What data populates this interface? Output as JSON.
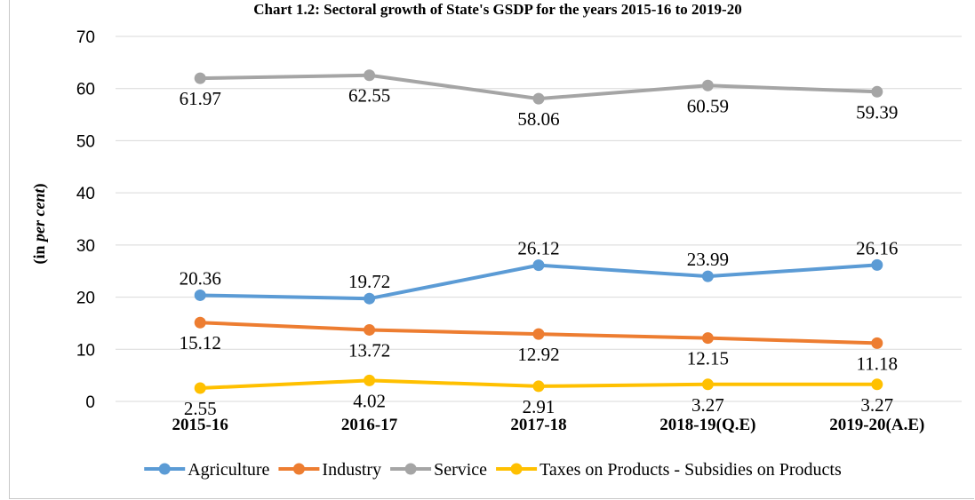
{
  "chart_data": {
    "type": "line",
    "title": "Chart 1.2: Sectoral growth of State's GSDP for the years 2015-16 to 2019-20",
    "ylabel_prefix": "(in ",
    "ylabel_italic": "per cent",
    "ylabel_suffix": ")",
    "xlabel": "",
    "ylim": [
      0,
      70
    ],
    "yticks": [
      "0",
      "10",
      "20",
      "30",
      "40",
      "50",
      "60",
      "70"
    ],
    "categories": [
      "2015-16",
      "2016-17",
      "2017-18",
      "2018-19(Q.E)",
      "2019-20(A.E)"
    ],
    "grid": true,
    "legend_position": "bottom",
    "series": [
      {
        "name": "Agriculture",
        "color": "#5b9bd5",
        "values": [
          20.36,
          19.72,
          26.12,
          23.99,
          26.16
        ],
        "labels": [
          "20.36",
          "19.72",
          "26.12",
          "23.99",
          "26.16"
        ],
        "label_pos": "above"
      },
      {
        "name": "Industry",
        "color": "#ed7d31",
        "values": [
          15.12,
          13.72,
          12.92,
          12.15,
          11.18
        ],
        "labels": [
          "15.12",
          "13.72",
          "12.92",
          "12.15",
          "11.18"
        ],
        "label_pos": "below"
      },
      {
        "name": "Service",
        "color": "#a5a5a5",
        "values": [
          61.97,
          62.55,
          58.06,
          60.59,
          59.39
        ],
        "labels": [
          "61.97",
          "62.55",
          "58.06",
          "60.59",
          "59.39"
        ],
        "label_pos": "below"
      },
      {
        "name": "Taxes on Products - Subsidies on Products",
        "color": "#ffc000",
        "values": [
          2.55,
          4.02,
          2.91,
          3.27,
          3.27
        ],
        "labels": [
          "2.55",
          "4.02",
          "2.91",
          "3.27",
          "3.27"
        ],
        "label_pos": "below"
      }
    ]
  }
}
